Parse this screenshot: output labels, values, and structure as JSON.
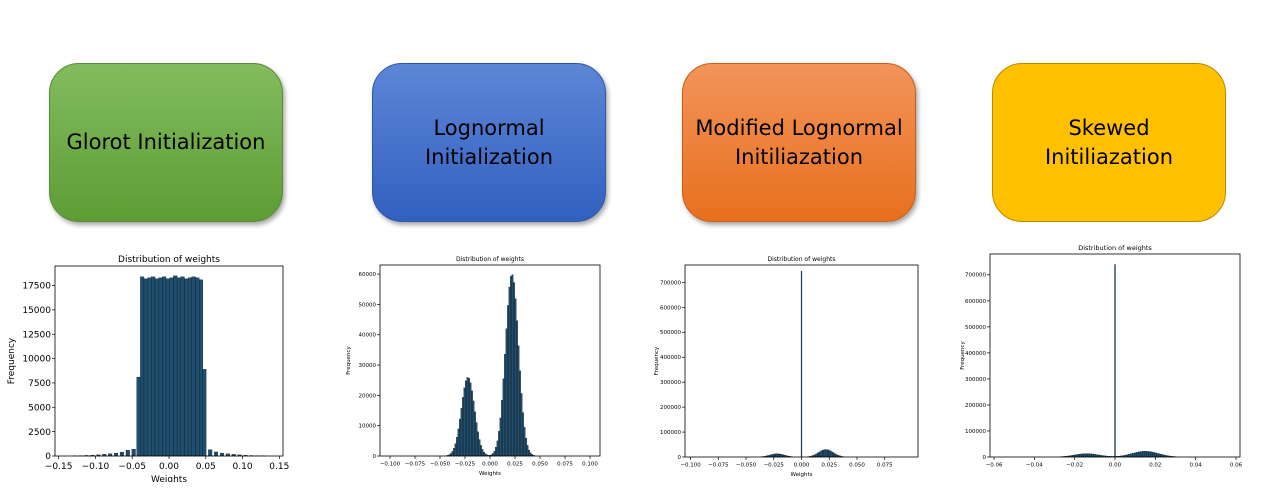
{
  "boxes": [
    {
      "lines": [
        "Glorot Initialization"
      ],
      "color": "#70ad47"
    },
    {
      "lines": [
        "Lognormal",
        "Initialization"
      ],
      "color": "#4472c4"
    },
    {
      "lines": [
        "Modified Lognormal",
        "Initiliazation"
      ],
      "color": "#ed7d31"
    },
    {
      "lines": [
        "Skewed",
        "Initiliazation"
      ],
      "color": "#ffc000"
    }
  ],
  "chart_data": [
    {
      "type": "bar",
      "title": "Distribution of weights",
      "xlabel": "Weights",
      "ylabel": "Frequency",
      "xlim": [
        -0.155,
        0.155
      ],
      "ylim": [
        0,
        19500
      ],
      "xticks": [
        -0.15,
        -0.1,
        -0.05,
        0.0,
        0.05,
        0.1,
        0.15
      ],
      "xtick_labels": [
        "−0.15",
        "−0.10",
        "−0.05",
        "0.00",
        "0.05",
        "0.10",
        "0.15"
      ],
      "yticks": [
        0,
        2500,
        5000,
        7500,
        10000,
        12500,
        15000,
        17500
      ],
      "yclip": false,
      "bar_color": "#1f4e6e",
      "bins": [
        {
          "x": -0.128,
          "v": 20
        },
        {
          "x": -0.12,
          "v": 40
        },
        {
          "x": -0.112,
          "v": 60
        },
        {
          "x": -0.104,
          "v": 90
        },
        {
          "x": -0.096,
          "v": 130
        },
        {
          "x": -0.088,
          "v": 180
        },
        {
          "x": -0.08,
          "v": 230
        },
        {
          "x": -0.072,
          "v": 300
        },
        {
          "x": -0.064,
          "v": 400
        },
        {
          "x": -0.056,
          "v": 600
        },
        {
          "x": -0.048,
          "v": 700
        },
        {
          "x": -0.0415,
          "v": 8100
        },
        {
          "x": -0.0365,
          "v": 18400
        },
        {
          "x": -0.0315,
          "v": 18200
        },
        {
          "x": -0.0265,
          "v": 18300
        },
        {
          "x": -0.0215,
          "v": 18400
        },
        {
          "x": -0.0165,
          "v": 18200
        },
        {
          "x": -0.0115,
          "v": 18300
        },
        {
          "x": -0.0065,
          "v": 18400
        },
        {
          "x": -0.0015,
          "v": 18200
        },
        {
          "x": 0.0035,
          "v": 18300
        },
        {
          "x": 0.0085,
          "v": 18500
        },
        {
          "x": 0.0135,
          "v": 18300
        },
        {
          "x": 0.0185,
          "v": 18400
        },
        {
          "x": 0.0235,
          "v": 18200
        },
        {
          "x": 0.0285,
          "v": 18300
        },
        {
          "x": 0.0335,
          "v": 18400
        },
        {
          "x": 0.0385,
          "v": 18300
        },
        {
          "x": 0.0435,
          "v": 18100
        },
        {
          "x": 0.048,
          "v": 8900
        },
        {
          "x": 0.056,
          "v": 650
        },
        {
          "x": 0.064,
          "v": 420
        },
        {
          "x": 0.072,
          "v": 300
        },
        {
          "x": 0.08,
          "v": 220
        },
        {
          "x": 0.088,
          "v": 170
        },
        {
          "x": 0.096,
          "v": 120
        },
        {
          "x": 0.104,
          "v": 80
        },
        {
          "x": 0.112,
          "v": 50
        },
        {
          "x": 0.12,
          "v": 30
        },
        {
          "x": 0.128,
          "v": 15
        }
      ],
      "bin_width": 0.005
    },
    {
      "type": "bar",
      "title": "Distribution of weights",
      "xlabel": "Weights",
      "ylabel": "Frequency",
      "xlim": [
        -0.11,
        0.11
      ],
      "ylim": [
        0,
        63000
      ],
      "xticks": [
        -0.1,
        -0.075,
        -0.05,
        -0.025,
        0.0,
        0.025,
        0.05,
        0.075,
        0.1
      ],
      "xtick_labels": [
        "−0.100",
        "−0.075",
        "−0.050",
        "−0.025",
        "0.000",
        "0.025",
        "0.050",
        "0.075",
        "0.100"
      ],
      "yticks": [
        0,
        10000,
        20000,
        30000,
        40000,
        50000,
        60000
      ],
      "yclip": false,
      "bar_color": "#1f4e6e",
      "peaks": [
        {
          "center": -0.022,
          "height": 26000,
          "sigma": 0.0065
        },
        {
          "center": 0.022,
          "height": 60000,
          "sigma": 0.0065
        }
      ],
      "range": [
        -0.06,
        0.07
      ],
      "bin_width": 0.0015
    },
    {
      "type": "bar",
      "title": "Distribution of weights",
      "xlabel": "Weights",
      "ylabel": "Frequency",
      "xlim": [
        -0.105,
        0.105
      ],
      "ylim": [
        0,
        770000
      ],
      "xticks": [
        -0.1,
        -0.075,
        -0.05,
        -0.025,
        0.0,
        0.025,
        0.05,
        0.075
      ],
      "xtick_labels": [
        "−0.100",
        "−0.075",
        "−0.050",
        "−0.025",
        "0.000",
        "0.025",
        "0.050",
        "0.075"
      ],
      "yticks": [
        0,
        100000,
        200000,
        300000,
        400000,
        500000,
        600000,
        700000
      ],
      "yclip": false,
      "bar_color": "#1f4e6e",
      "spike": {
        "x": 0.0,
        "height": 745000
      },
      "peaks": [
        {
          "center": -0.022,
          "height": 13000,
          "sigma": 0.0065
        },
        {
          "center": 0.022,
          "height": 30000,
          "sigma": 0.0065
        }
      ],
      "range": [
        -0.06,
        0.07
      ],
      "bin_width": 0.0015
    },
    {
      "type": "bar",
      "title": "Distribution of weights",
      "xlabel": "",
      "ylabel": "Frequency",
      "xlim": [
        -0.062,
        0.062
      ],
      "ylim": [
        0,
        780000
      ],
      "xticks": [
        -0.06,
        -0.04,
        -0.02,
        0.0,
        0.02,
        0.04,
        0.06
      ],
      "xtick_labels": [
        "−0.06",
        "−0.04",
        "−0.02",
        "0.00",
        "0.02",
        "0.04",
        "0.06"
      ],
      "yticks": [
        0,
        100000,
        200000,
        300000,
        400000,
        500000,
        600000,
        700000
      ],
      "yclip": false,
      "bar_color": "#1f4e6e",
      "spike": {
        "x": 0.0,
        "height": 740000
      },
      "peaks": [
        {
          "center": -0.014,
          "height": 13000,
          "sigma": 0.006
        },
        {
          "center": 0.015,
          "height": 22000,
          "sigma": 0.0065
        }
      ],
      "range": [
        -0.035,
        0.045
      ],
      "bin_width": 0.001
    }
  ]
}
